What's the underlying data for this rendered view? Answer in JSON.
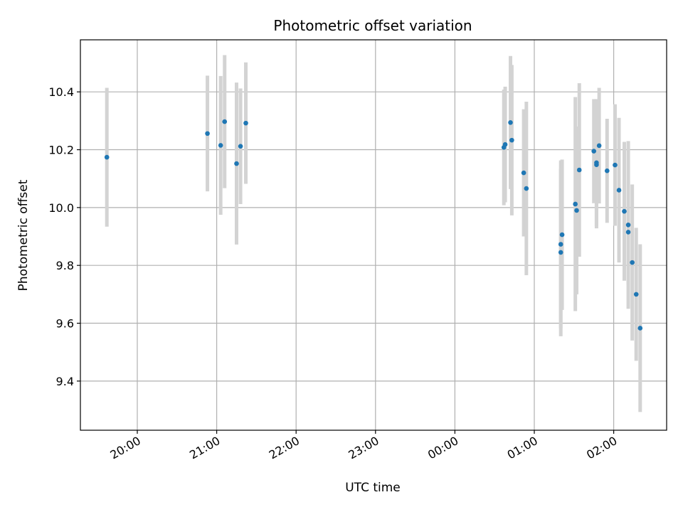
{
  "chart_data": {
    "type": "scatter",
    "title": "Photometric offset variation",
    "xlabel": "UTC time",
    "ylabel": "Photometric offset",
    "x_ticks": [
      "20:00",
      "21:00",
      "22:00",
      "23:00",
      "00:00",
      "01:00",
      "02:00"
    ],
    "y_ticks": [
      "9.4",
      "9.6",
      "9.8",
      "10.0",
      "10.2",
      "10.4"
    ],
    "ylim": [
      9.23,
      10.58
    ],
    "xlim": [
      "19:17",
      "02:40"
    ],
    "grid": true,
    "point_color": "#1f77b4",
    "errorbar_color": "#d3d3d3",
    "points": [
      {
        "x": "19:37",
        "y": 10.174,
        "err": 0.24
      },
      {
        "x": "20:53",
        "y": 10.256,
        "err": 0.2
      },
      {
        "x": "21:03",
        "y": 10.215,
        "err": 0.24
      },
      {
        "x": "21:06",
        "y": 10.297,
        "err": 0.23
      },
      {
        "x": "21:15",
        "y": 10.152,
        "err": 0.28
      },
      {
        "x": "21:18",
        "y": 10.212,
        "err": 0.2
      },
      {
        "x": "21:22",
        "y": 10.292,
        "err": 0.21
      },
      {
        "x": "00:37",
        "y": 10.208,
        "err": 0.2
      },
      {
        "x": "00:38",
        "y": 10.218,
        "err": 0.2
      },
      {
        "x": "00:42",
        "y": 10.294,
        "err": 0.23
      },
      {
        "x": "00:43",
        "y": 10.233,
        "err": 0.26
      },
      {
        "x": "00:52",
        "y": 10.12,
        "err": 0.22
      },
      {
        "x": "00:54",
        "y": 10.066,
        "err": 0.3
      },
      {
        "x": "01:20",
        "y": 9.845,
        "err": 0.29
      },
      {
        "x": "01:20",
        "y": 9.873,
        "err": 0.29
      },
      {
        "x": "01:21",
        "y": 9.906,
        "err": 0.26
      },
      {
        "x": "01:31",
        "y": 10.012,
        "err": 0.37
      },
      {
        "x": "01:32",
        "y": 9.99,
        "err": 0.29
      },
      {
        "x": "01:34",
        "y": 10.13,
        "err": 0.3
      },
      {
        "x": "01:45",
        "y": 10.195,
        "err": 0.18
      },
      {
        "x": "01:47",
        "y": 10.148,
        "err": 0.22
      },
      {
        "x": "01:47",
        "y": 10.155,
        "err": 0.22
      },
      {
        "x": "01:49",
        "y": 10.214,
        "err": 0.2
      },
      {
        "x": "01:55",
        "y": 10.127,
        "err": 0.18
      },
      {
        "x": "02:01",
        "y": 10.147,
        "err": 0.21
      },
      {
        "x": "02:04",
        "y": 10.06,
        "err": 0.25
      },
      {
        "x": "02:08",
        "y": 9.987,
        "err": 0.24
      },
      {
        "x": "02:11",
        "y": 9.94,
        "err": 0.29
      },
      {
        "x": "02:11",
        "y": 9.915,
        "err": 0.18
      },
      {
        "x": "02:14",
        "y": 9.81,
        "err": 0.27
      },
      {
        "x": "02:17",
        "y": 9.7,
        "err": 0.23
      },
      {
        "x": "02:20",
        "y": 9.583,
        "err": 0.29
      }
    ]
  }
}
